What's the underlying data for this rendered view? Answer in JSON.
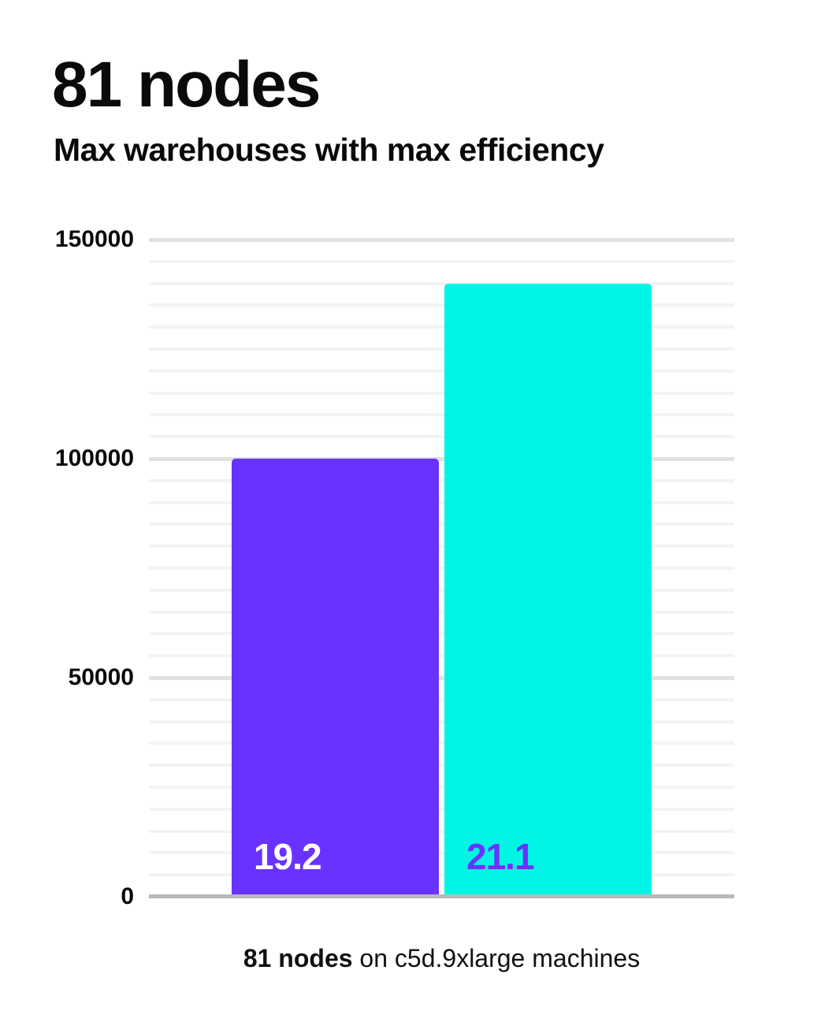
{
  "page": {
    "title": "81 nodes",
    "subtitle": "Max warehouses with max efficiency",
    "caption": {
      "bold": "81 nodes",
      "rest": " on c5d.9xlarge machines"
    }
  },
  "colors": {
    "background": "#ffffff",
    "text": "#0a0a0a",
    "purple": "#6933ff",
    "cyan": "#00f5e4",
    "gridline_minor": "#f3f3f3",
    "gridline_major": "#e1e1e1",
    "axis_line": "#b9b9b9"
  },
  "chart_data": {
    "type": "bar",
    "title": "81 nodes",
    "subtitle": "Max warehouses with max efficiency",
    "categories": [
      "19.2",
      "21.1"
    ],
    "values": [
      100000,
      140000
    ],
    "bar_labels": [
      "19.2",
      "21.1"
    ],
    "bar_colors": [
      "#6933ff",
      "#00f5e4"
    ],
    "bar_label_colors": [
      "#ffffff",
      "#6933ff"
    ],
    "xlabel": "81 nodes on c5d.9xlarge machines",
    "ylabel": "",
    "ylim": [
      0,
      150000
    ],
    "yticks": [
      0,
      50000,
      100000,
      150000
    ],
    "ytick_step_major": 50000,
    "ytick_step_minor": 5000,
    "ytick_labels": [
      "0",
      "50000",
      "100000",
      "150000"
    ],
    "grid": "horizontal, minor every 5000, major every 50000",
    "legend": "none"
  }
}
